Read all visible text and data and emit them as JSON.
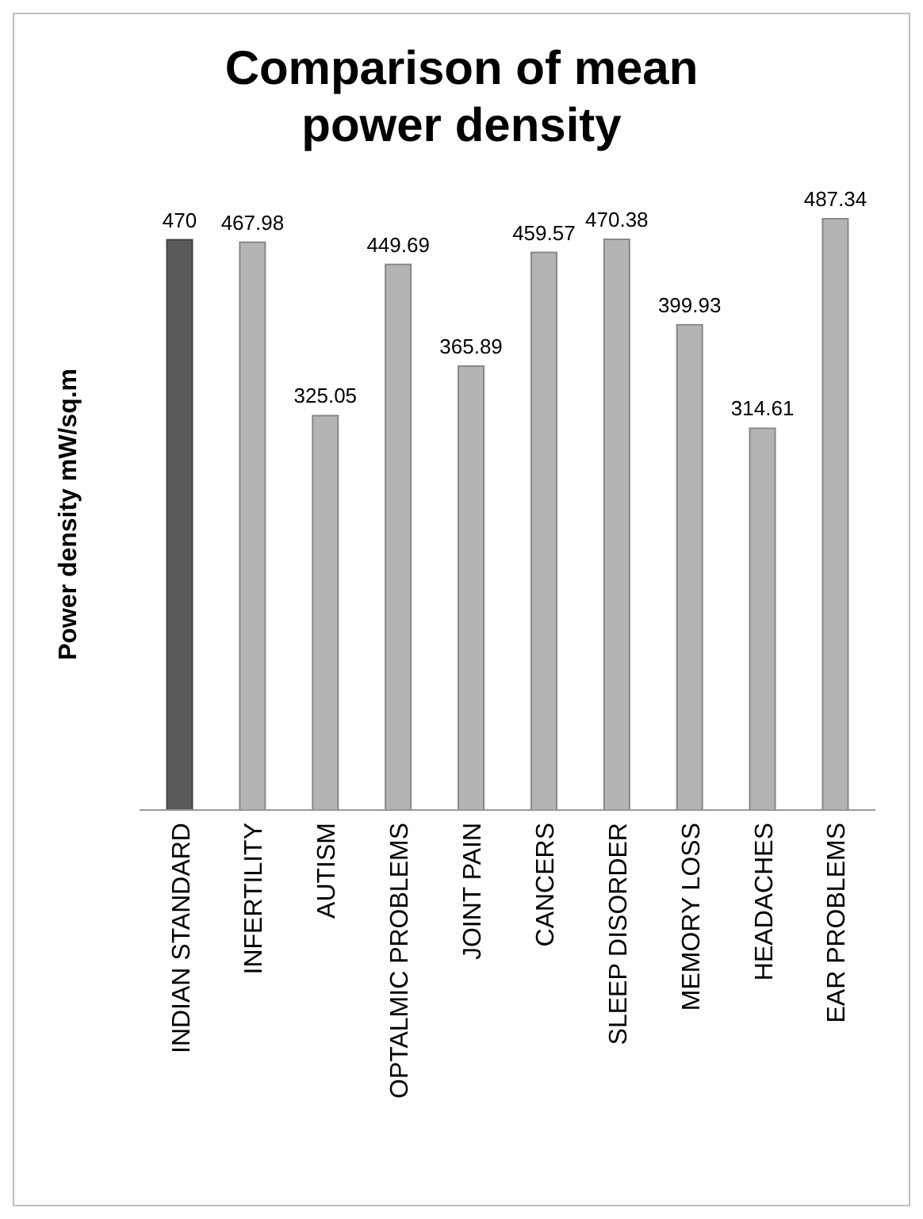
{
  "chart_data": {
    "type": "bar",
    "title": "Comparison of mean power density",
    "ylabel": "Power density  mW/sq.m",
    "categories": [
      "INDIAN STANDARD",
      "INFERTILITY",
      "AUTISM",
      "OPTALMIC PROBLEMS",
      "JOINT PAIN",
      "CANCERS",
      "SLEEP DISORDER",
      "MEMORY LOSS",
      "HEADACHES",
      "EAR PROBLEMS"
    ],
    "values": [
      470,
      467.98,
      325.05,
      449.69,
      365.89,
      459.57,
      470.38,
      399.93,
      314.61,
      487.34
    ],
    "colors": [
      "#5a5a5a",
      "#b4b4b4",
      "#b4b4b4",
      "#b4b4b4",
      "#b4b4b4",
      "#b4b4b4",
      "#b4b4b4",
      "#b4b4b4",
      "#b4b4b4",
      "#b4b4b4"
    ],
    "data_labels": true
  }
}
